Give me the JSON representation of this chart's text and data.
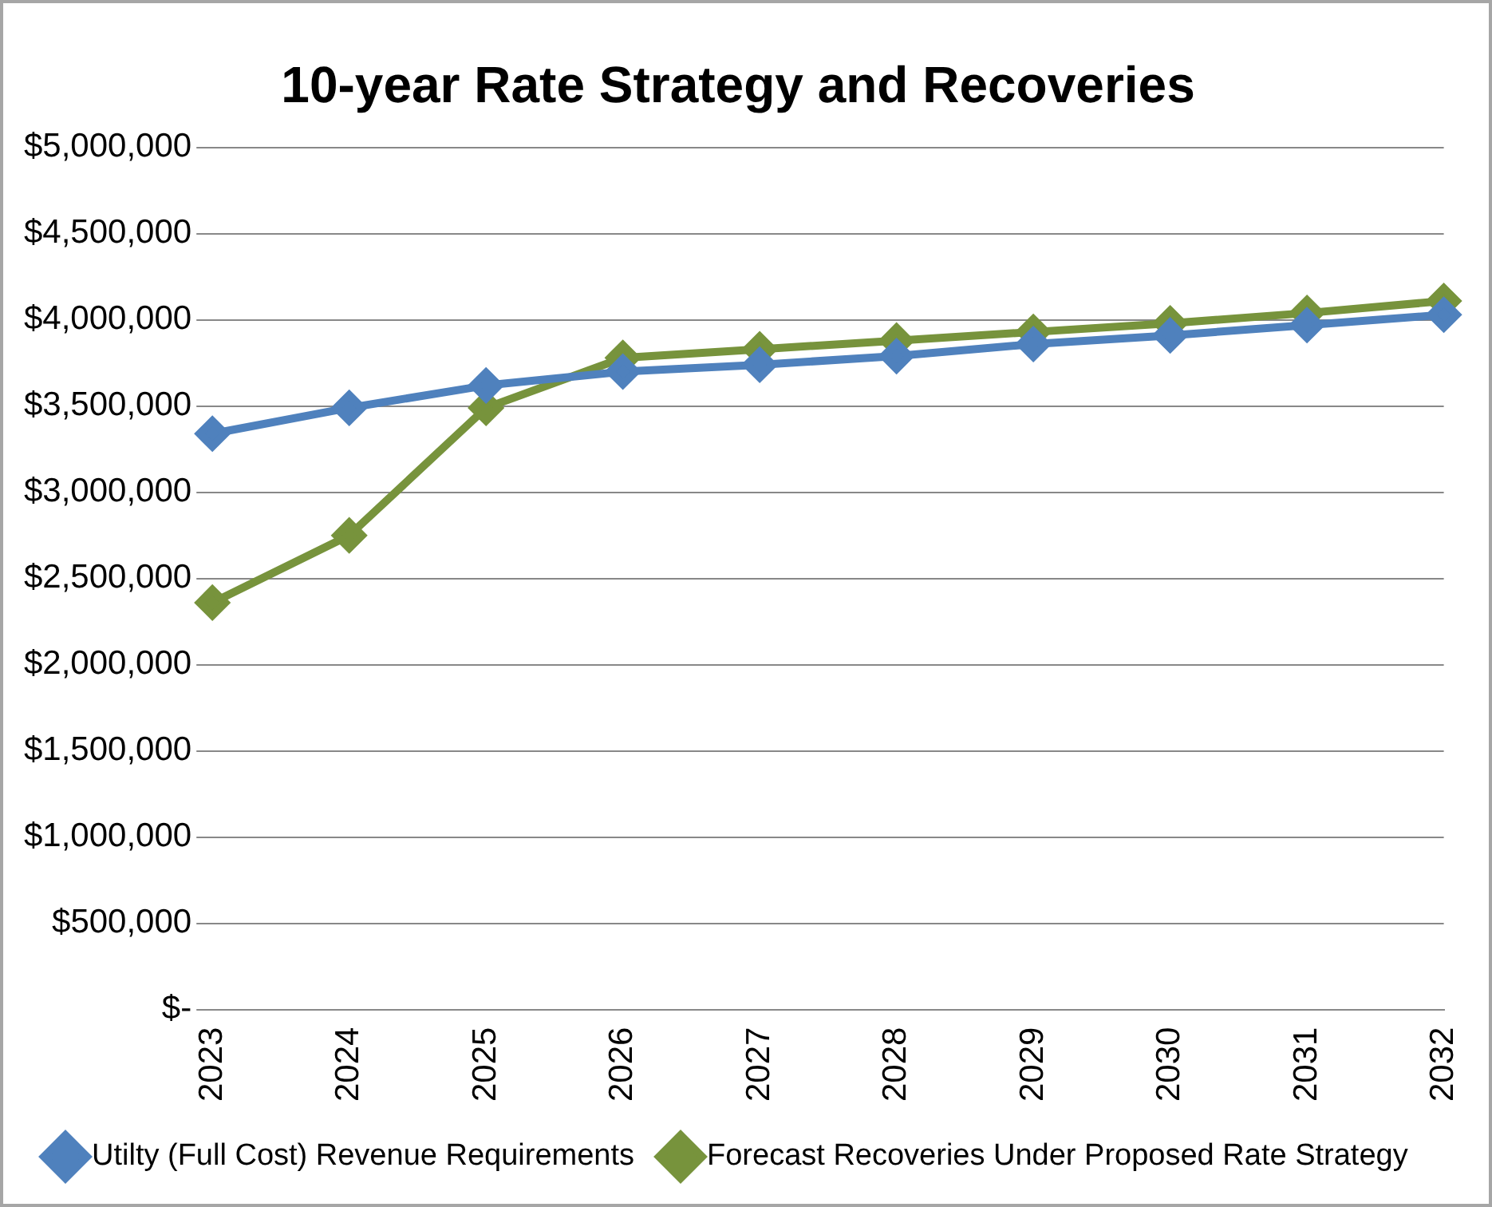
{
  "chart_data": {
    "type": "line",
    "title": "10-year Rate Strategy and Recoveries",
    "categories": [
      "2023",
      "2024",
      "2025",
      "2026",
      "2027",
      "2028",
      "2029",
      "2030",
      "2031",
      "2032"
    ],
    "series": [
      {
        "name": "Utilty (Full Cost) Revenue Requirements",
        "color": "#4f81bd",
        "values": [
          3340000,
          3490000,
          3620000,
          3700000,
          3740000,
          3790000,
          3860000,
          3910000,
          3970000,
          4030000
        ]
      },
      {
        "name": "Forecast Recoveries Under Proposed Rate Strategy",
        "color": "#77933c",
        "values": [
          2360000,
          2750000,
          3490000,
          3780000,
          3830000,
          3880000,
          3930000,
          3980000,
          4040000,
          4110000
        ]
      }
    ],
    "ylim": [
      0,
      5000000
    ],
    "yticks": [
      {
        "value": 0,
        "label": "$-"
      },
      {
        "value": 500000,
        "label": "$500,000"
      },
      {
        "value": 1000000,
        "label": "$1,000,000"
      },
      {
        "value": 1500000,
        "label": "$1,500,000"
      },
      {
        "value": 2000000,
        "label": "$2,000,000"
      },
      {
        "value": 2500000,
        "label": "$2,500,000"
      },
      {
        "value": 3000000,
        "label": "$3,000,000"
      },
      {
        "value": 3500000,
        "label": "$3,500,000"
      },
      {
        "value": 4000000,
        "label": "$4,000,000"
      },
      {
        "value": 4500000,
        "label": "$4,500,000"
      },
      {
        "value": 5000000,
        "label": "$5,000,000"
      }
    ],
    "grid": "y",
    "legend": "bottom",
    "marker": "diamond",
    "line_style": "solid"
  }
}
